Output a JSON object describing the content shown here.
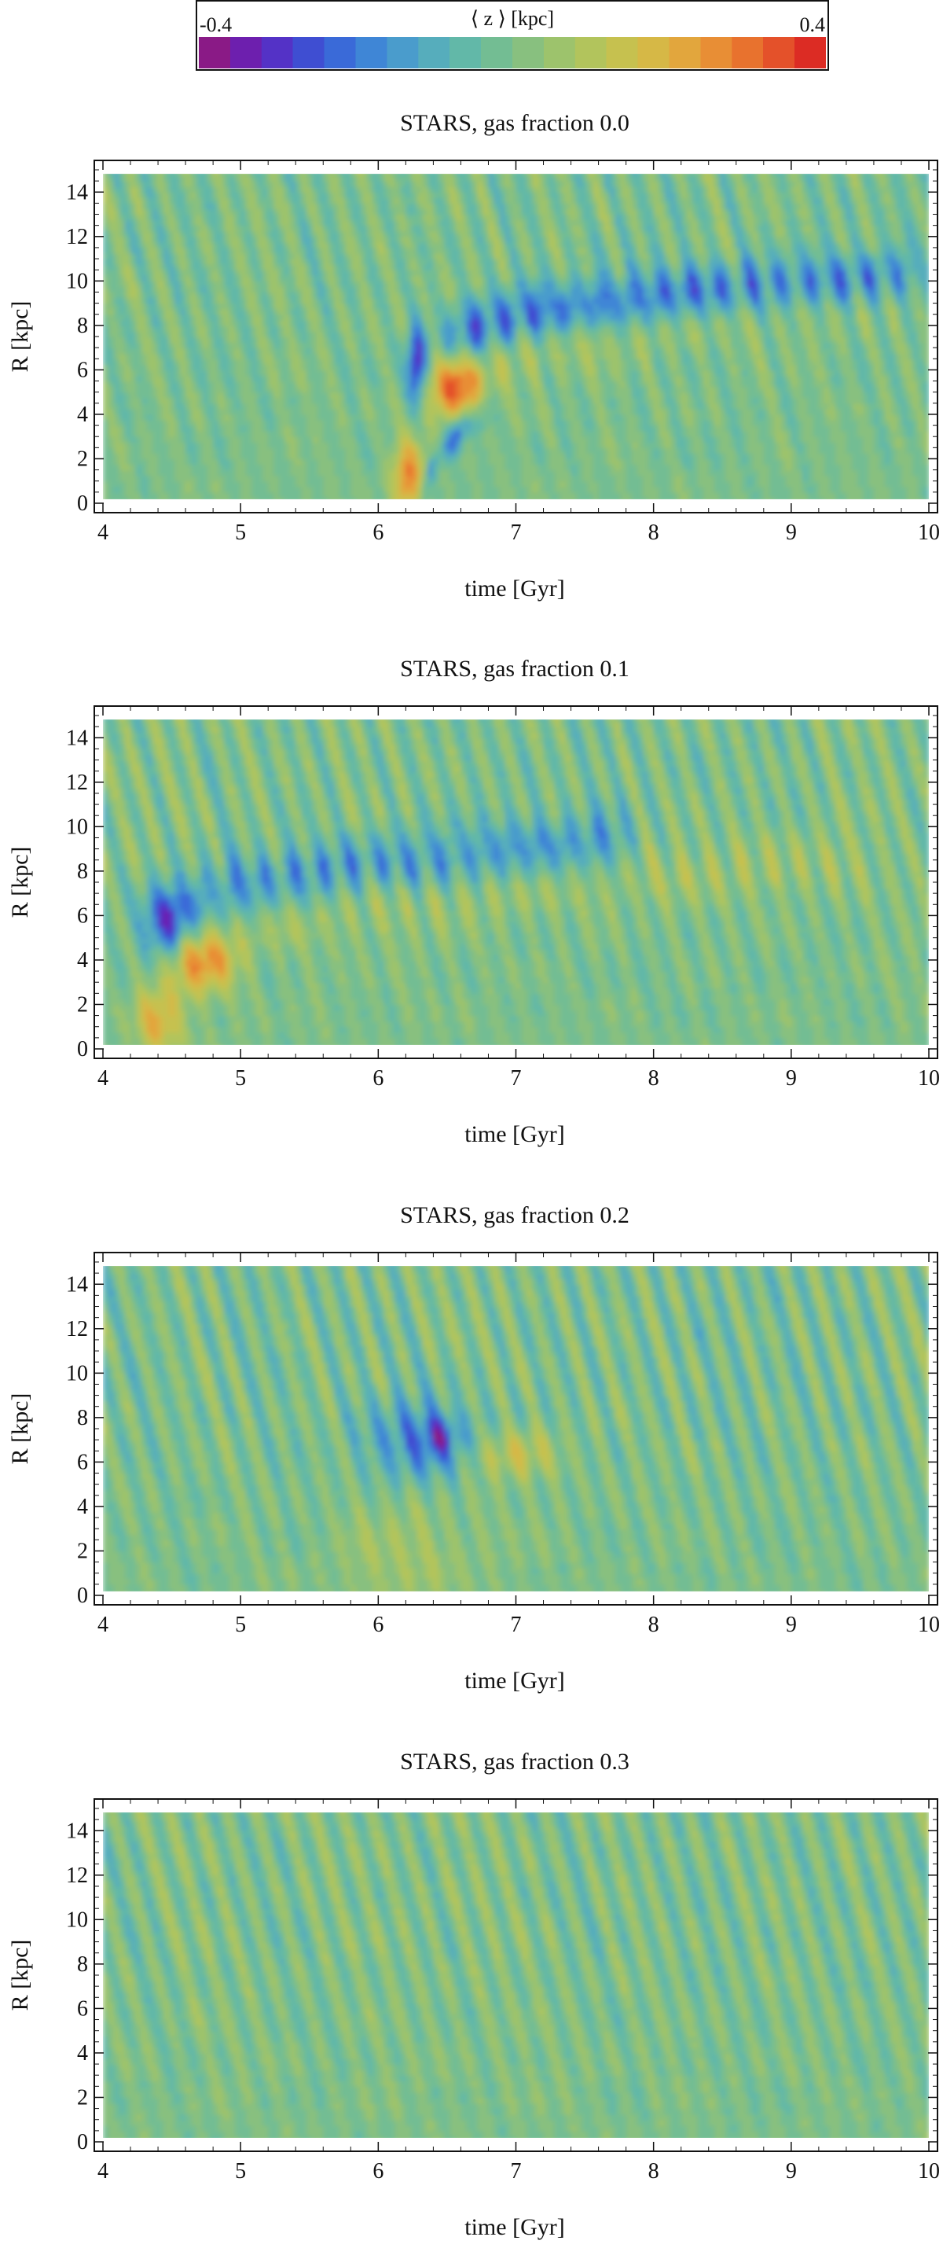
{
  "colorbar": {
    "label": "⟨ z ⟩ [kpc]",
    "min": -0.4,
    "max": 0.4,
    "min_label": "-0.4",
    "max_label": "0.4",
    "colors": [
      "#8a1a86",
      "#6d1fae",
      "#5432c6",
      "#3f4ed2",
      "#3a6ad8",
      "#3f86d6",
      "#4a9ccc",
      "#56adbc",
      "#62b8a8",
      "#73bd93",
      "#88c07f",
      "#9dc36c",
      "#b2c45c",
      "#c6c14f",
      "#d6b846",
      "#e2a63d",
      "#e88e35",
      "#e8722e",
      "#e4512a",
      "#dc2c24"
    ]
  },
  "chart_data": [
    {
      "type": "heatmap",
      "title": "STARS, gas fraction 0.0",
      "xlabel": "time [Gyr]",
      "ylabel": "R [kpc]",
      "xlim": [
        4,
        10
      ],
      "ylim": [
        0,
        15
      ],
      "xticks": [
        "4",
        "5",
        "6",
        "7",
        "8",
        "9",
        "10"
      ],
      "yticks": [
        "0",
        "2",
        "4",
        "6",
        "8",
        "10",
        "12",
        "14"
      ],
      "value_range": [
        -0.4,
        0.4
      ],
      "features": [
        {
          "kind": "blob",
          "t": 6.28,
          "r": 6.2,
          "st": 0.05,
          "sr": 1.2,
          "v": -0.36
        },
        {
          "kind": "blob",
          "t": 6.22,
          "r": 1.2,
          "st": 0.08,
          "sr": 1.2,
          "v": 0.28
        },
        {
          "kind": "blob",
          "t": 6.55,
          "r": 5.2,
          "st": 0.13,
          "sr": 1.0,
          "v": 0.34
        },
        {
          "kind": "ridge",
          "t0": 6.35,
          "t1": 6.75,
          "r0": 0.5,
          "r1": 4.0,
          "w": 0.55,
          "v": -0.26
        },
        {
          "kind": "ridge",
          "t0": 6.5,
          "t1": 9.9,
          "r0": 7.2,
          "r1": 10.2,
          "w": 0.9,
          "v": -0.26
        },
        {
          "kind": "ridge",
          "t0": 6.7,
          "t1": 9.9,
          "r0": 5.3,
          "r1": 9.6,
          "w": 0.9,
          "v": 0.1
        },
        {
          "kind": "streaks",
          "amp": 0.07
        }
      ]
    },
    {
      "type": "heatmap",
      "title": "STARS, gas fraction 0.1",
      "xlabel": "time [Gyr]",
      "ylabel": "R [kpc]",
      "xlim": [
        4,
        10
      ],
      "ylim": [
        0,
        15
      ],
      "xticks": [
        "4",
        "5",
        "6",
        "7",
        "8",
        "9",
        "10"
      ],
      "yticks": [
        "0",
        "2",
        "4",
        "6",
        "8",
        "10",
        "12",
        "14"
      ],
      "value_range": [
        -0.4,
        0.4
      ],
      "features": [
        {
          "kind": "blob",
          "t": 4.45,
          "r": 5.8,
          "st": 0.12,
          "sr": 1.1,
          "v": -0.27
        },
        {
          "kind": "blob",
          "t": 4.4,
          "r": 1.3,
          "st": 0.12,
          "sr": 1.2,
          "v": 0.2
        },
        {
          "kind": "blob",
          "t": 4.72,
          "r": 4.0,
          "st": 0.15,
          "sr": 1.0,
          "v": 0.26
        },
        {
          "kind": "ridge",
          "t0": 4.5,
          "t1": 7.8,
          "r0": 6.0,
          "r1": 9.3,
          "w": 1.0,
          "v": -0.18
        },
        {
          "kind": "ridge",
          "t0": 4.9,
          "t1": 9.5,
          "r0": 4.6,
          "r1": 8.5,
          "w": 1.0,
          "v": 0.08
        },
        {
          "kind": "streaks",
          "amp": 0.08
        }
      ]
    },
    {
      "type": "heatmap",
      "title": "STARS, gas fraction 0.2",
      "xlabel": "time [Gyr]",
      "ylabel": "R [kpc]",
      "xlim": [
        4,
        10
      ],
      "ylim": [
        0,
        15
      ],
      "xticks": [
        "4",
        "5",
        "6",
        "7",
        "8",
        "9",
        "10"
      ],
      "yticks": [
        "0",
        "2",
        "4",
        "6",
        "8",
        "10",
        "12",
        "14"
      ],
      "value_range": [
        -0.4,
        0.4
      ],
      "features": [
        {
          "kind": "blob",
          "t": 6.35,
          "r": 7.0,
          "st": 0.3,
          "sr": 1.2,
          "v": -0.2
        },
        {
          "kind": "blob",
          "t": 6.45,
          "r": 7.2,
          "st": 0.07,
          "sr": 0.6,
          "v": -0.12
        },
        {
          "kind": "blob",
          "t": 6.95,
          "r": 6.4,
          "st": 0.25,
          "sr": 0.8,
          "v": 0.13
        },
        {
          "kind": "blob",
          "t": 6.2,
          "r": 1.8,
          "st": 0.35,
          "sr": 1.8,
          "v": 0.07
        },
        {
          "kind": "streaks",
          "amp": 0.09
        }
      ]
    },
    {
      "type": "heatmap",
      "title": "STARS, gas fraction 0.3",
      "xlabel": "time [Gyr]",
      "ylabel": "R [kpc]",
      "xlim": [
        4,
        10
      ],
      "ylim": [
        0,
        15
      ],
      "xticks": [
        "4",
        "5",
        "6",
        "7",
        "8",
        "9",
        "10"
      ],
      "yticks": [
        "0",
        "2",
        "4",
        "6",
        "8",
        "10",
        "12",
        "14"
      ],
      "value_range": [
        -0.4,
        0.4
      ],
      "features": [
        {
          "kind": "streaks",
          "amp": 0.08
        }
      ]
    }
  ]
}
